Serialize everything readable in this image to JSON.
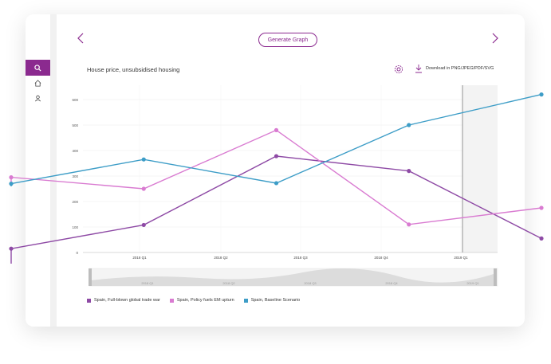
{
  "toolbar": {
    "generate_label": "Generate Graph",
    "download_label": "Download in PNG/JPEG/PDF/SVG"
  },
  "sidebar": {
    "items": [
      {
        "icon": "search-icon"
      },
      {
        "icon": "home-icon"
      },
      {
        "icon": "user-icon"
      }
    ]
  },
  "colors": {
    "accent": "#8b2a8f",
    "series_trade_war": "#8e4aa5",
    "series_em_upturn": "#d97bd1",
    "series_baseline": "#3d9dc7"
  },
  "chart_data": {
    "type": "line",
    "title": "House price, unsubsidised housing",
    "xlabel": "",
    "ylabel": "",
    "ylim": [
      0,
      620
    ],
    "yticks": [
      0,
      100,
      200,
      300,
      400,
      500,
      600
    ],
    "xticks": [
      "2018 Q1",
      "2018 Q2",
      "2018 Q3",
      "2018 Q4",
      "2019 Q1"
    ],
    "x": [
      0,
      1,
      2,
      3,
      4,
      5
    ],
    "series": [
      {
        "name": "Spain, Full-blown global trade war",
        "color": "#8e4aa5",
        "values": [
          15,
          108,
          378,
          320,
          55
        ],
        "x": [
          0,
          1.4,
          2.8,
          4.2,
          5.6
        ]
      },
      {
        "name": "Spain, Policy fuels EM upturn",
        "color": "#d97bd1",
        "values": [
          295,
          250,
          480,
          110,
          175
        ],
        "x": [
          0,
          1.4,
          2.8,
          4.2,
          5.6
        ]
      },
      {
        "name": "Spain, Baseline Scenario",
        "color": "#3d9dc7",
        "values": [
          270,
          365,
          272,
          500,
          620
        ],
        "x": [
          0,
          1.4,
          2.8,
          4.2,
          5.6
        ]
      }
    ],
    "navigator_labels": [
      "2018 Q1",
      "2018 Q2",
      "2018 Q3",
      "2018 Q4",
      "2019 Q1"
    ]
  }
}
